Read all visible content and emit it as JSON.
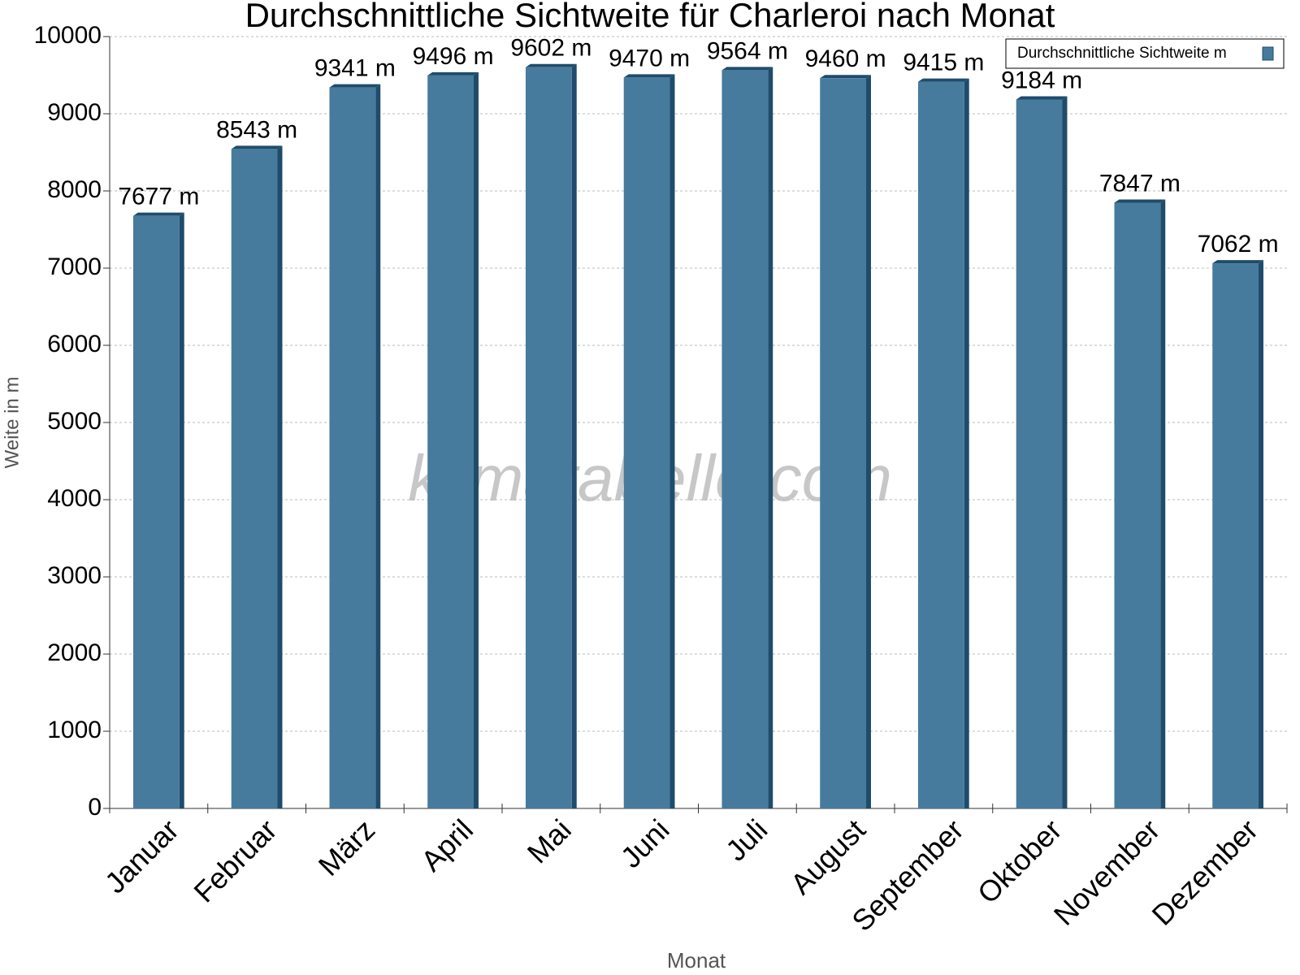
{
  "chart_data": {
    "type": "bar",
    "title": "Durchschnittliche Sichtweite für Charleroi nach Monat",
    "watermark": "klimatabelle.com",
    "x_label": "Monat",
    "y_label": "Weite in m",
    "categories": [
      "Januar",
      "Februar",
      "März",
      "April",
      "Mai",
      "Juni",
      "Juli",
      "August",
      "September",
      "Oktober",
      "November",
      "Dezember"
    ],
    "series": [
      {
        "name": "Durchschnittliche Sichtweite m",
        "color": "#467b9d",
        "values": [
          7677,
          8543,
          9341,
          9496,
          9602,
          9470,
          9564,
          9460,
          9415,
          9184,
          7847,
          7062
        ],
        "value_labels": [
          "7677 m",
          "8543 m",
          "9341 m",
          "9496 m",
          "9602 m",
          "9470 m",
          "9564 m",
          "9460 m",
          "9415 m",
          "9184 m",
          "7847 m",
          "7062 m"
        ]
      }
    ],
    "ylim": [
      0,
      10000
    ],
    "yticks": [
      0,
      1000,
      2000,
      3000,
      4000,
      5000,
      6000,
      7000,
      8000,
      9000,
      10000
    ],
    "grid": true,
    "legend": "top-right"
  }
}
